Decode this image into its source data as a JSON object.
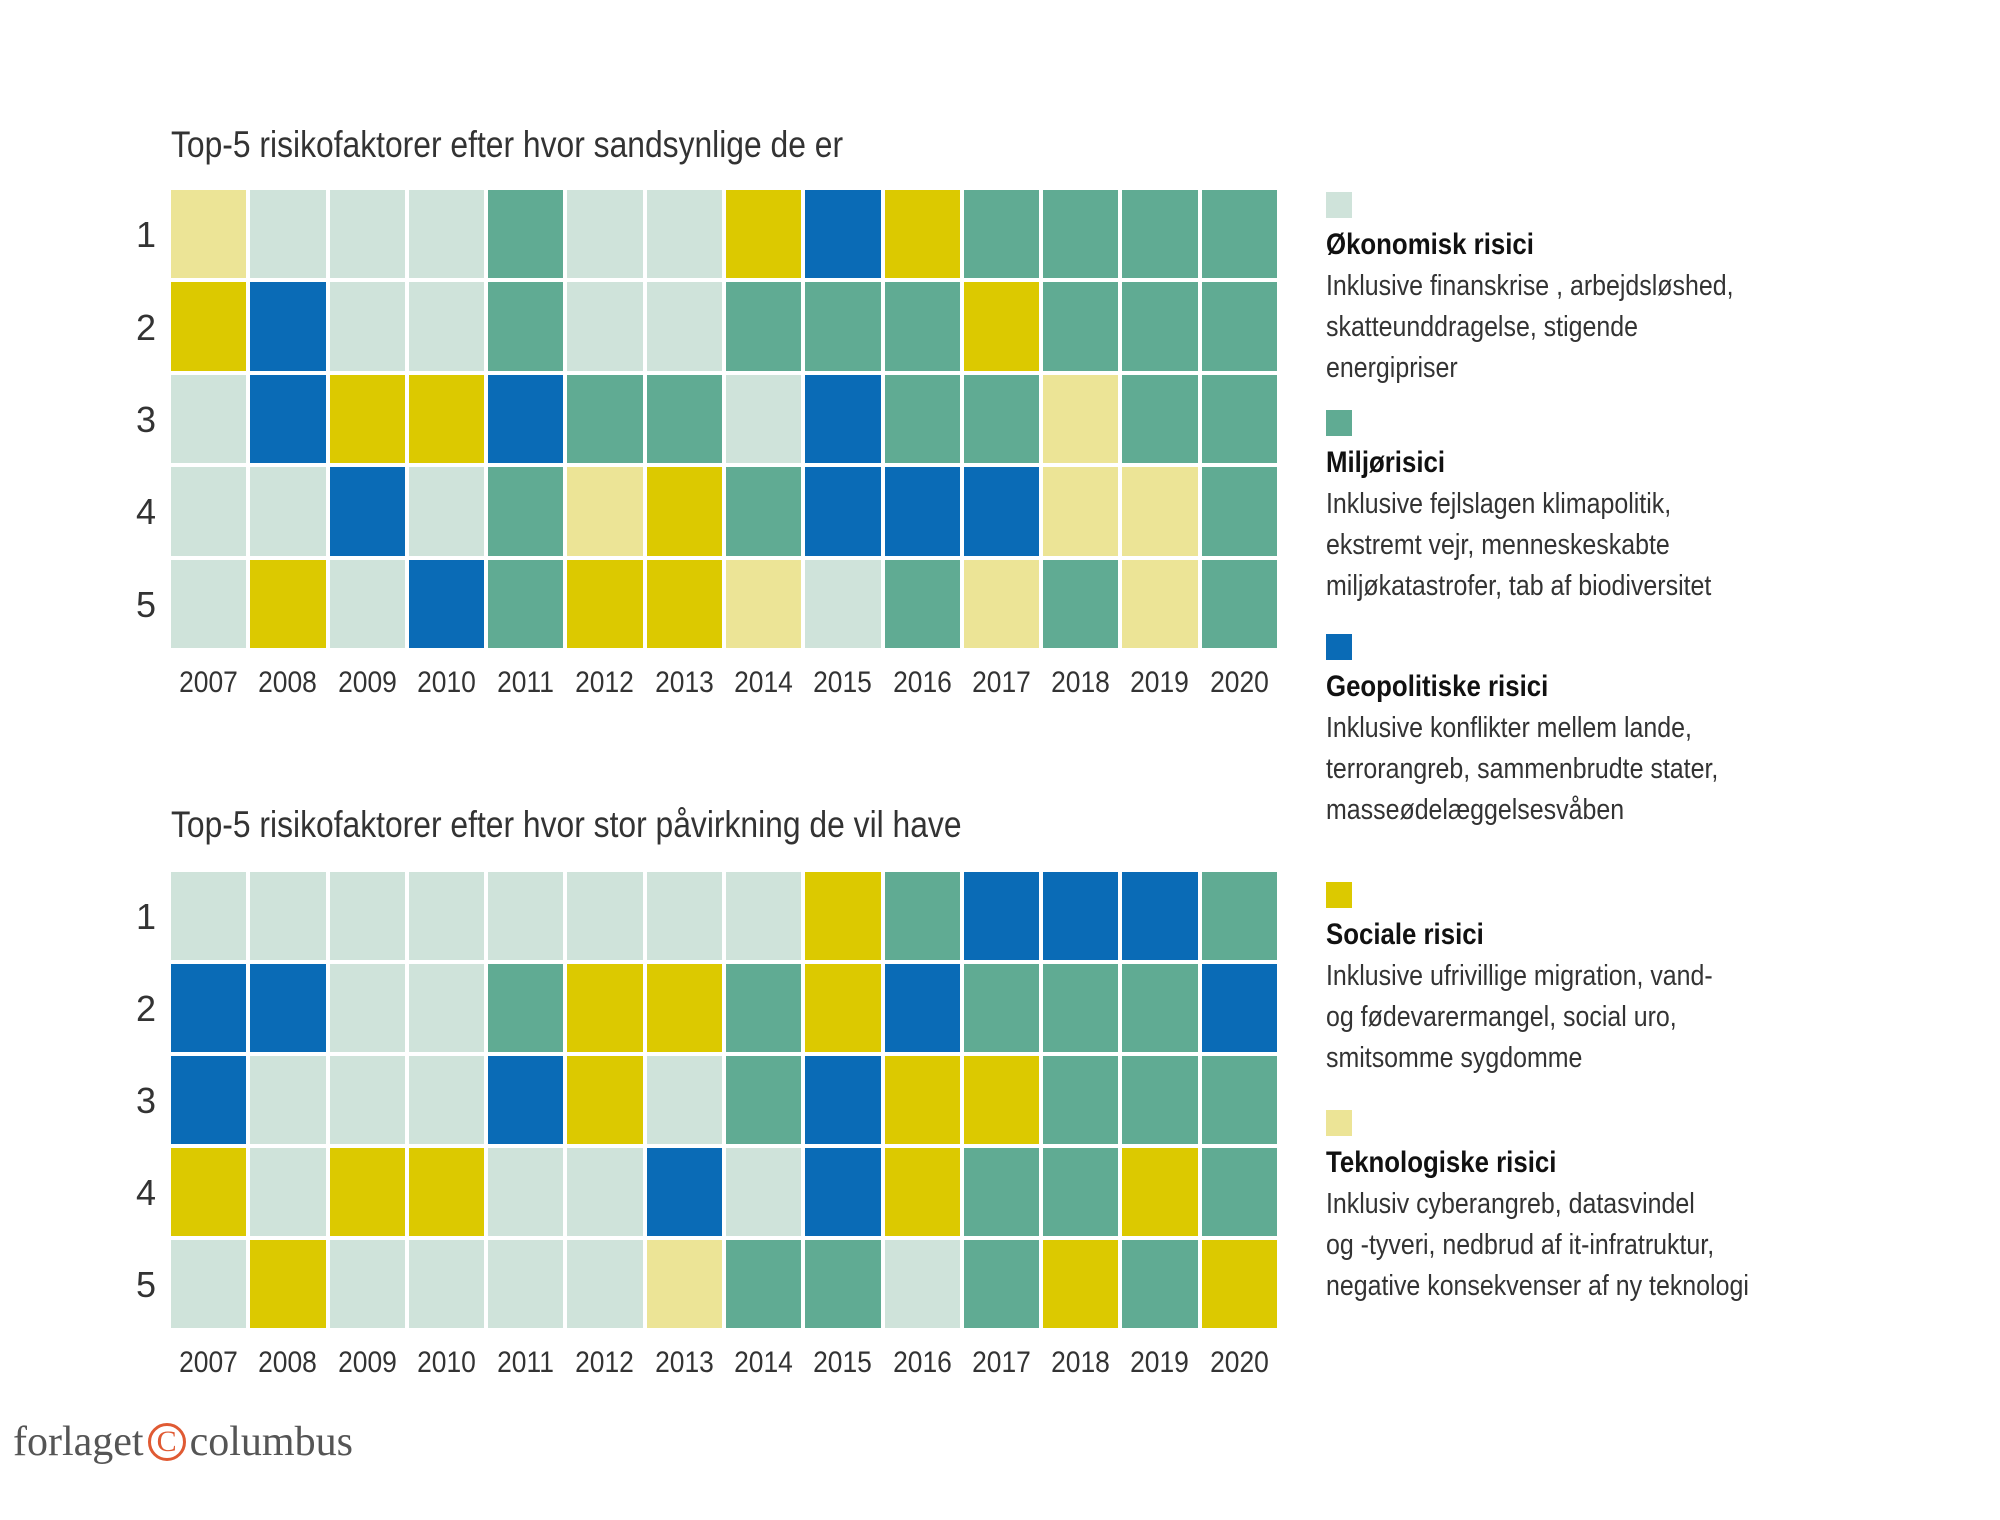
{
  "colors": {
    "E": "#cfe3da",
    "M": "#60ab93",
    "G": "#0a6bb6",
    "S": "#dcc900",
    "T": "#ece496"
  },
  "chart_data": [
    {
      "type": "heatmap",
      "title": "Top-5 risikofaktorer efter hvor sandsynlige de er",
      "categories": [
        "2007",
        "2008",
        "2009",
        "2010",
        "2011",
        "2012",
        "2013",
        "2014",
        "2015",
        "2016",
        "2017",
        "2018",
        "2019",
        "2020"
      ],
      "rows": [
        "1",
        "2",
        "3",
        "4",
        "5"
      ],
      "values": [
        [
          "T",
          "E",
          "E",
          "E",
          "M",
          "E",
          "E",
          "S",
          "G",
          "S",
          "M",
          "M",
          "M",
          "M"
        ],
        [
          "S",
          "G",
          "E",
          "E",
          "M",
          "E",
          "E",
          "M",
          "M",
          "M",
          "S",
          "M",
          "M",
          "M"
        ],
        [
          "E",
          "G",
          "S",
          "S",
          "G",
          "M",
          "M",
          "E",
          "G",
          "M",
          "M",
          "T",
          "M",
          "M"
        ],
        [
          "E",
          "E",
          "G",
          "E",
          "M",
          "T",
          "S",
          "M",
          "G",
          "G",
          "G",
          "T",
          "T",
          "M"
        ],
        [
          "E",
          "S",
          "E",
          "G",
          "M",
          "S",
          "S",
          "T",
          "E",
          "M",
          "T",
          "M",
          "T",
          "M"
        ]
      ]
    },
    {
      "type": "heatmap",
      "title": "Top-5 risikofaktorer efter hvor stor påvirkning de vil have",
      "categories": [
        "2007",
        "2008",
        "2009",
        "2010",
        "2011",
        "2012",
        "2013",
        "2014",
        "2015",
        "2016",
        "2017",
        "2018",
        "2019",
        "2020"
      ],
      "rows": [
        "1",
        "2",
        "3",
        "4",
        "5"
      ],
      "values": [
        [
          "E",
          "E",
          "E",
          "E",
          "E",
          "E",
          "E",
          "E",
          "S",
          "M",
          "G",
          "G",
          "G",
          "M"
        ],
        [
          "G",
          "G",
          "E",
          "E",
          "M",
          "S",
          "S",
          "M",
          "S",
          "G",
          "M",
          "M",
          "M",
          "G"
        ],
        [
          "G",
          "E",
          "E",
          "E",
          "G",
          "S",
          "E",
          "M",
          "G",
          "S",
          "S",
          "M",
          "M",
          "M"
        ],
        [
          "S",
          "E",
          "S",
          "S",
          "E",
          "E",
          "G",
          "E",
          "G",
          "S",
          "M",
          "M",
          "S",
          "M"
        ],
        [
          "E",
          "S",
          "E",
          "E",
          "E",
          "E",
          "T",
          "M",
          "M",
          "E",
          "M",
          "S",
          "M",
          "S"
        ]
      ]
    }
  ],
  "legend": [
    {
      "key": "E",
      "title": "Økonomisk risici",
      "desc": "Inklusive finanskrise , arbejdsløshed,\nskatteunddragelse, stigende\nenergipriser"
    },
    {
      "key": "M",
      "title": "Miljørisici",
      "desc": "Inklusive fejlslagen klimapolitik,\nekstremt vejr, menneskeskabte\nmiljøkatastrofer, tab af biodiversitet"
    },
    {
      "key": "G",
      "title": "Geopolitiske risici",
      "desc": "Inklusive konflikter mellem lande,\nterrorangreb, sammenbrudte stater,\nmasseødelæggelsesvåben"
    },
    {
      "key": "S",
      "title": "Sociale risici",
      "desc": "Inklusive ufrivillige migration, vand-\nog fødevarermangel, social uro,\nsmitsomme sygdomme"
    },
    {
      "key": "T",
      "title": "Teknologiske risici",
      "desc": "Inklusiv cyberangreb, datasvindel\nog -tyveri, nedbrud af it-infratruktur,\nnegative konsekvenser af ny teknologi"
    }
  ],
  "logo": {
    "text_left": "forlaget",
    "symbol": "C",
    "text_right": "columbus"
  }
}
